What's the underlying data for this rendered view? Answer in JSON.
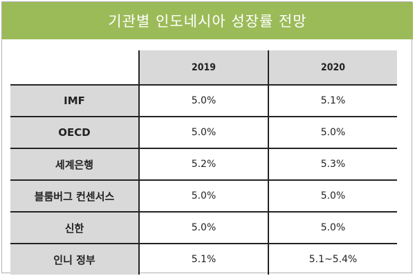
{
  "title": "기관별 인도네시아 성장률 전망",
  "columns": [
    "",
    "2019",
    "2020"
  ],
  "rows": [
    {
      "label": "IMF",
      "y2019": "5.0%",
      "y2020": "5.1%"
    },
    {
      "label": "OECD",
      "y2019": "5.0%",
      "y2020": "5.0%"
    },
    {
      "label": "세계은행",
      "y2019": "5.2%",
      "y2020": "5.3%"
    },
    {
      "label": "블룸버그 컨센서스",
      "y2019": "5.0%",
      "y2020": "5.0%"
    },
    {
      "label": "신한",
      "y2019": "5.0%",
      "y2020": "5.0%"
    },
    {
      "label": "인니 정부",
      "y2019": "5.1%",
      "y2020": "5.1~5.4%"
    }
  ]
}
